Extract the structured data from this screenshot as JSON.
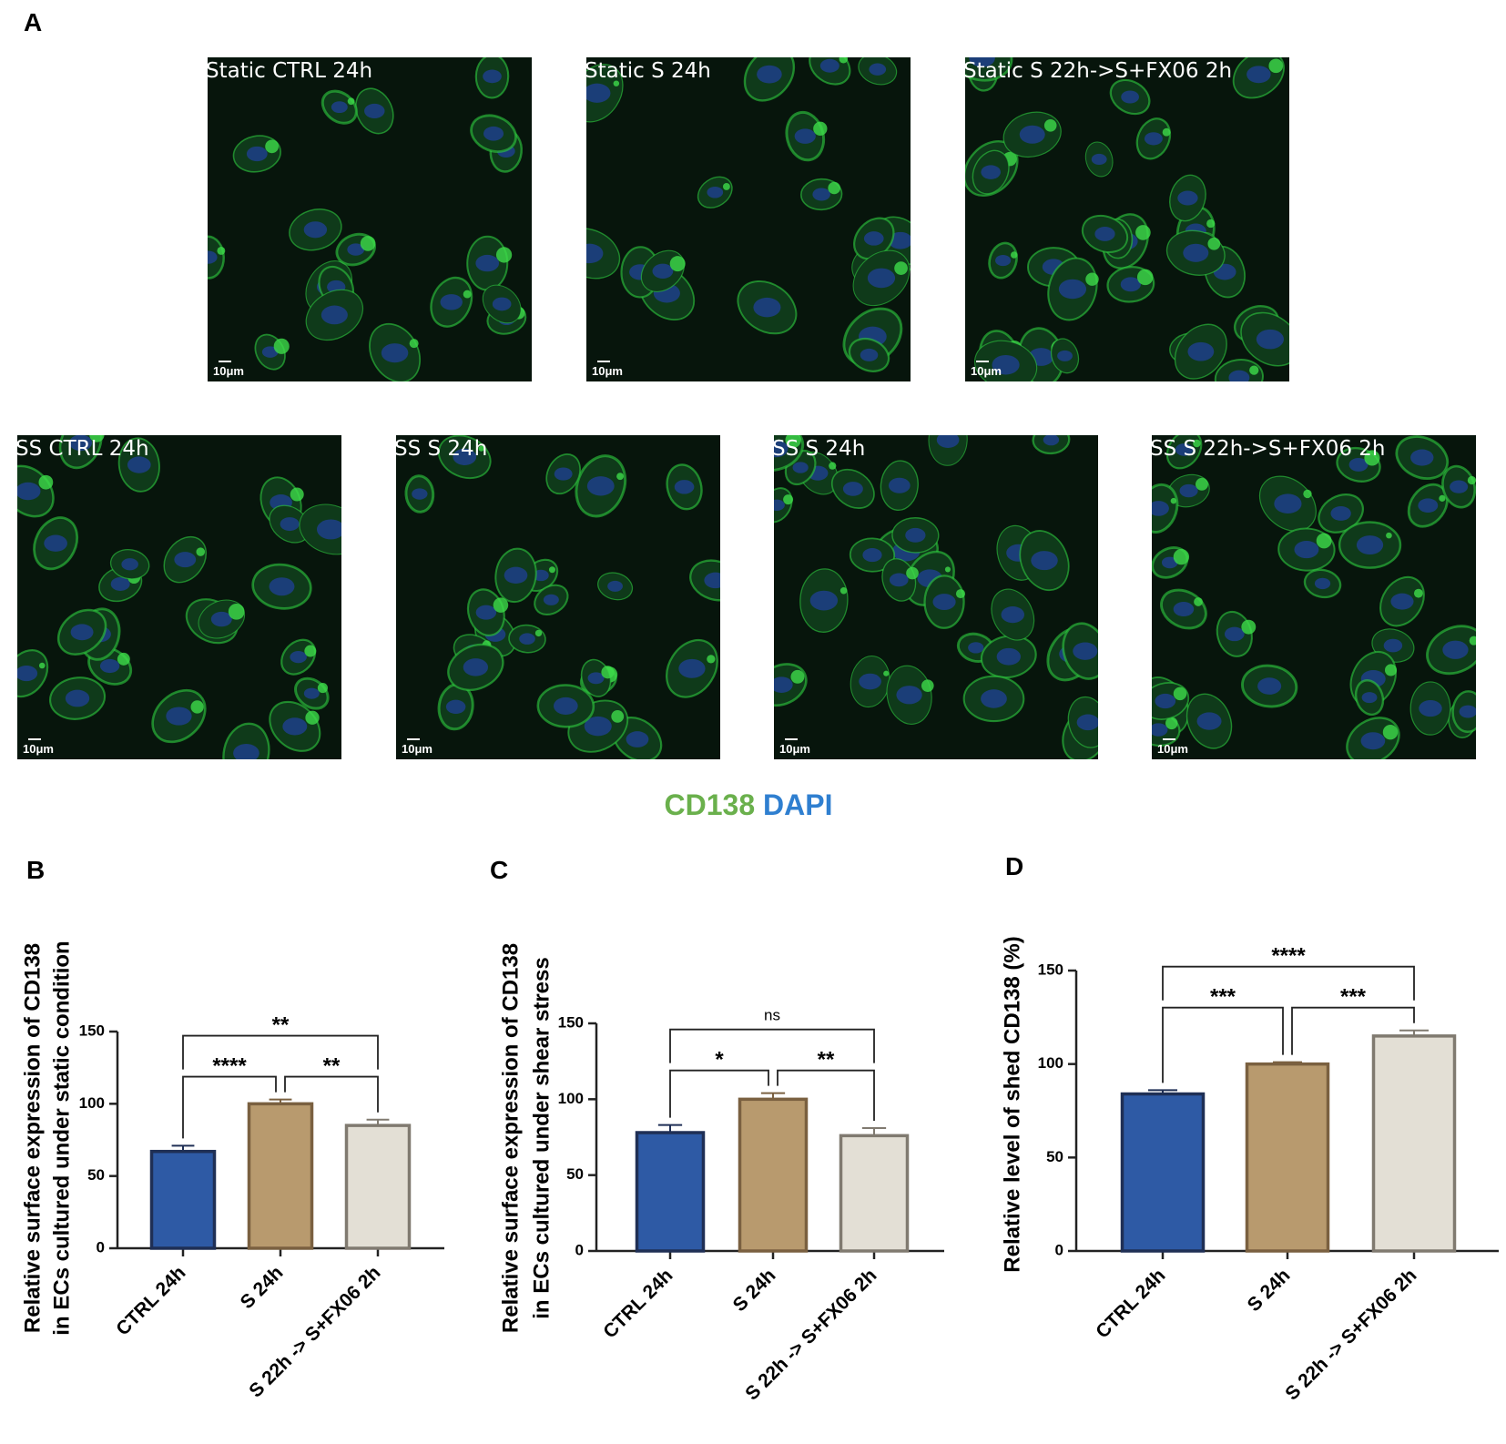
{
  "micrographs": {
    "panel": "A",
    "images": [
      {
        "label": "Static CTRL 24h",
        "scale_bar": "10μm"
      },
      {
        "label": "Static S 24h",
        "scale_bar": "10μm"
      },
      {
        "label": "Static S 22h->S+FX06 2h",
        "scale_bar": "10μm"
      },
      {
        "label": "SS CTRL 24h",
        "scale_bar": "10μm"
      },
      {
        "label": "SS S 24h",
        "scale_bar": "10μm"
      },
      {
        "label": "SS S 24h",
        "scale_bar": "10μm"
      },
      {
        "label": "SS S 22h->S+FX06 2h",
        "scale_bar": "10μm"
      }
    ],
    "stain_legend": [
      {
        "text": "CD138",
        "color": "#6ab04c"
      },
      {
        "text": "DAPI",
        "color": "#2f7fd0"
      }
    ]
  },
  "chart_data": [
    {
      "type": "bar",
      "panel": "B",
      "ylabel": [
        "Relative surface expression of CD138",
        "in ECs cultured under static condition"
      ],
      "categories": [
        "CTRL 24h",
        "S 24h",
        "S 22h -> S+FX06 2h"
      ],
      "values": [
        67,
        100,
        85
      ],
      "errors": [
        4,
        3,
        4
      ],
      "colors": [
        "#2e5aa5",
        "#b89a6e",
        "#e3dfd5"
      ],
      "edge_colors": [
        "#1f2f55",
        "#7a6040",
        "#807a70"
      ],
      "ylim": [
        0,
        150
      ],
      "yticks": [
        0,
        50,
        100,
        150
      ],
      "comparisons": [
        {
          "from": 0,
          "to": 1,
          "label": "****"
        },
        {
          "from": 1,
          "to": 2,
          "label": "**"
        },
        {
          "from": 0,
          "to": 2,
          "label": "**"
        }
      ]
    },
    {
      "type": "bar",
      "panel": "C",
      "ylabel": [
        "Relative surface expression of CD138",
        "in ECs cultured under shear stress"
      ],
      "categories": [
        "CTRL 24h",
        "S 24h",
        "S 22h -> S+FX06 2h"
      ],
      "values": [
        78,
        100,
        76
      ],
      "errors": [
        5,
        4,
        5
      ],
      "colors": [
        "#2e5aa5",
        "#b89a6e",
        "#e3dfd5"
      ],
      "edge_colors": [
        "#1f2f55",
        "#7a6040",
        "#807a70"
      ],
      "ylim": [
        0,
        150
      ],
      "yticks": [
        0,
        50,
        100,
        150
      ],
      "comparisons": [
        {
          "from": 0,
          "to": 1,
          "label": "*"
        },
        {
          "from": 1,
          "to": 2,
          "label": "**"
        },
        {
          "from": 0,
          "to": 2,
          "label": "ns"
        }
      ]
    },
    {
      "type": "bar",
      "panel": "D",
      "ylabel": [
        "Relative level of shed CD138 (%)"
      ],
      "categories": [
        "CTRL 24h",
        "S 24h",
        "S 22h -> S+FX06 2h"
      ],
      "values": [
        84,
        100,
        115
      ],
      "errors": [
        2,
        1,
        3
      ],
      "colors": [
        "#2e5aa5",
        "#b89a6e",
        "#e3dfd5"
      ],
      "edge_colors": [
        "#1f2f55",
        "#7a6040",
        "#807a70"
      ],
      "ylim": [
        0,
        150
      ],
      "yticks": [
        0,
        50,
        100,
        150
      ],
      "comparisons": [
        {
          "from": 0,
          "to": 1,
          "label": "***"
        },
        {
          "from": 1,
          "to": 2,
          "label": "***"
        },
        {
          "from": 0,
          "to": 2,
          "label": "****"
        }
      ]
    }
  ]
}
